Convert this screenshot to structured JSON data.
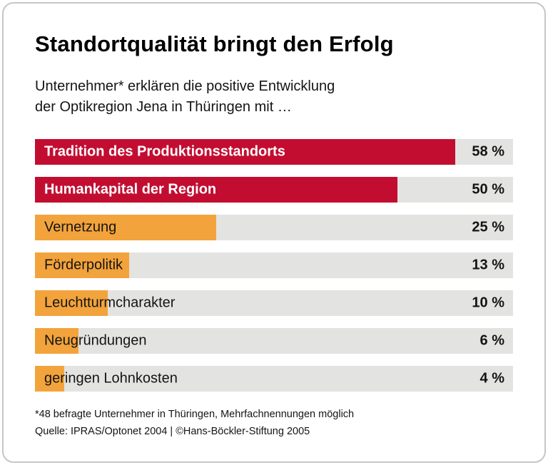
{
  "colors": {
    "red": "#c20d31",
    "orange": "#f3a33b",
    "track": "#e3e3e2",
    "text": "#141414",
    "card_border": "#c6c6c6",
    "background": "#ffffff"
  },
  "header": {
    "title": "Standortqualität bringt den Erfolg",
    "subtitle_line1": "Unternehmer* erklären die positive Entwicklung",
    "subtitle_line2": "der Optikregion Jena in Thüringen mit …"
  },
  "chart_data": {
    "type": "bar",
    "orientation": "horizontal",
    "title": "Standortqualität bringt den Erfolg",
    "subtitle": "Unternehmer* erklären die positive Entwicklung der Optikregion Jena in Thüringen mit …",
    "categories": [
      "Tradition des Produktionsstandorts",
      "Humankapital der Region",
      "Vernetzung",
      "Förderpolitik",
      "Leuchtturmcharakter",
      "Neugründungen",
      "geringen Lohnkosten"
    ],
    "values": [
      58,
      50,
      25,
      13,
      10,
      6,
      4
    ],
    "value_labels": [
      "58 %",
      "50 %",
      "25 %",
      "13 %",
      "10 %",
      "6 %",
      "4 %"
    ],
    "bar_colors": [
      "#c20d31",
      "#c20d31",
      "#f3a33b",
      "#f3a33b",
      "#f3a33b",
      "#f3a33b",
      "#f3a33b"
    ],
    "highlight": [
      true,
      true,
      false,
      false,
      false,
      false,
      false
    ],
    "track_color": "#e3e3e2",
    "xlim": [
      0,
      66
    ],
    "grid": false,
    "legend": false,
    "unit": "%"
  },
  "footer": {
    "footnote": "*48 befragte Unternehmer in Thüringen, Mehrfachnennungen möglich",
    "source": "Quelle: IPRAS/Optonet 2004 | ©Hans-Böckler-Stiftung 2005"
  }
}
